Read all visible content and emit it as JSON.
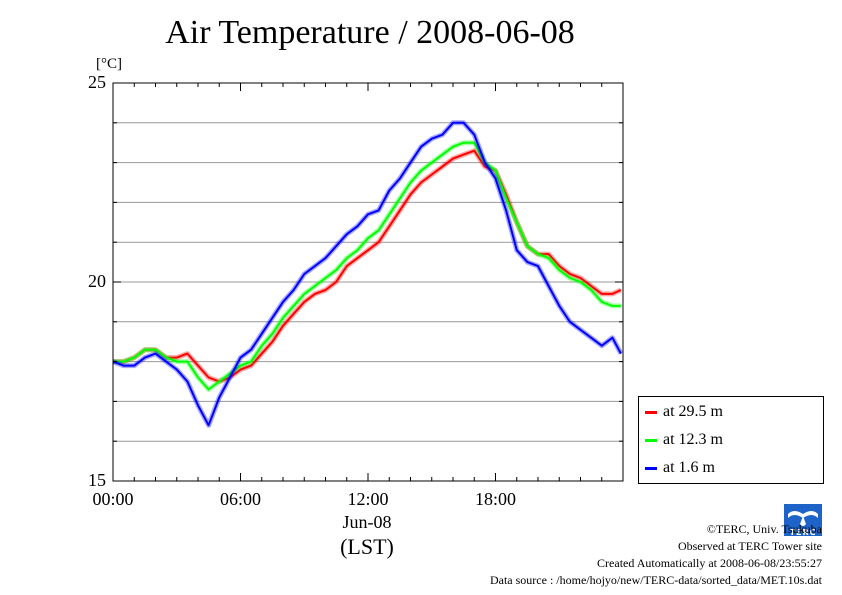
{
  "chart_data": {
    "type": "line",
    "title": "Air Temperature / 2008-06-08",
    "ylabel": "[°C]",
    "xlabel": "(LST)",
    "date_label": "Jun-08",
    "ylim": [
      15,
      25
    ],
    "xlim": [
      0,
      24
    ],
    "x_ticks": [
      0,
      6,
      12,
      18
    ],
    "x_tick_labels": [
      "00:00",
      "06:00",
      "12:00",
      "18:00"
    ],
    "y_ticks": [
      15,
      20,
      25
    ],
    "y_tick_labels": [
      "15",
      "20",
      "25"
    ],
    "grid": true,
    "legend_position": "bottom-right",
    "x": [
      0.0,
      0.5,
      1.0,
      1.5,
      2.0,
      2.5,
      3.0,
      3.5,
      4.0,
      4.5,
      5.0,
      5.5,
      6.0,
      6.5,
      7.0,
      7.5,
      8.0,
      8.5,
      9.0,
      9.5,
      10.0,
      10.5,
      11.0,
      11.5,
      12.0,
      12.5,
      13.0,
      13.5,
      14.0,
      14.5,
      15.0,
      15.5,
      16.0,
      16.5,
      17.0,
      17.5,
      18.0,
      18.5,
      19.0,
      19.5,
      20.0,
      20.5,
      21.0,
      21.5,
      22.0,
      22.5,
      23.0,
      23.5,
      23.9
    ],
    "series": [
      {
        "name": "at 29.5 m",
        "color": "#ff0000",
        "values": [
          18.0,
          18.0,
          18.1,
          18.3,
          18.3,
          18.1,
          18.1,
          18.2,
          17.9,
          17.6,
          17.5,
          17.6,
          17.8,
          17.9,
          18.2,
          18.5,
          18.9,
          19.2,
          19.5,
          19.7,
          19.8,
          20.0,
          20.4,
          20.6,
          20.8,
          21.0,
          21.4,
          21.8,
          22.2,
          22.5,
          22.7,
          22.9,
          23.1,
          23.2,
          23.3,
          22.9,
          22.8,
          22.2,
          21.5,
          20.9,
          20.7,
          20.7,
          20.4,
          20.2,
          20.1,
          19.9,
          19.7,
          19.7,
          19.8
        ]
      },
      {
        "name": "at 12.3 m",
        "color": "#00ff00",
        "values": [
          18.0,
          18.0,
          18.1,
          18.3,
          18.3,
          18.1,
          18.0,
          18.0,
          17.6,
          17.3,
          17.5,
          17.7,
          17.9,
          18.0,
          18.4,
          18.7,
          19.1,
          19.4,
          19.7,
          19.9,
          20.1,
          20.3,
          20.6,
          20.8,
          21.1,
          21.3,
          21.7,
          22.1,
          22.5,
          22.8,
          23.0,
          23.2,
          23.4,
          23.5,
          23.5,
          23.0,
          22.8,
          22.1,
          21.5,
          20.9,
          20.7,
          20.6,
          20.3,
          20.1,
          20.0,
          19.8,
          19.5,
          19.4,
          19.4
        ]
      },
      {
        "name": "at 1.6 m",
        "color": "#0000ff",
        "values": [
          18.0,
          17.9,
          17.9,
          18.1,
          18.2,
          18.0,
          17.8,
          17.5,
          16.9,
          16.4,
          17.1,
          17.6,
          18.1,
          18.3,
          18.7,
          19.1,
          19.5,
          19.8,
          20.2,
          20.4,
          20.6,
          20.9,
          21.2,
          21.4,
          21.7,
          21.8,
          22.3,
          22.6,
          23.0,
          23.4,
          23.6,
          23.7,
          24.0,
          24.0,
          23.7,
          23.0,
          22.6,
          21.8,
          20.8,
          20.5,
          20.4,
          19.9,
          19.4,
          19.0,
          18.8,
          18.6,
          18.4,
          18.6,
          18.2
        ]
      }
    ]
  },
  "footer": {
    "copyright": "©TERC, Univ. Tsukuba",
    "observed": "Observed at TERC Tower site",
    "created": "Created Automatically at 2008-06-08/23:55:27",
    "source": "Data source : /home/hojyo/new/TERC-data/sorted_data/MET.10s.dat",
    "logo_text": "TERC"
  }
}
